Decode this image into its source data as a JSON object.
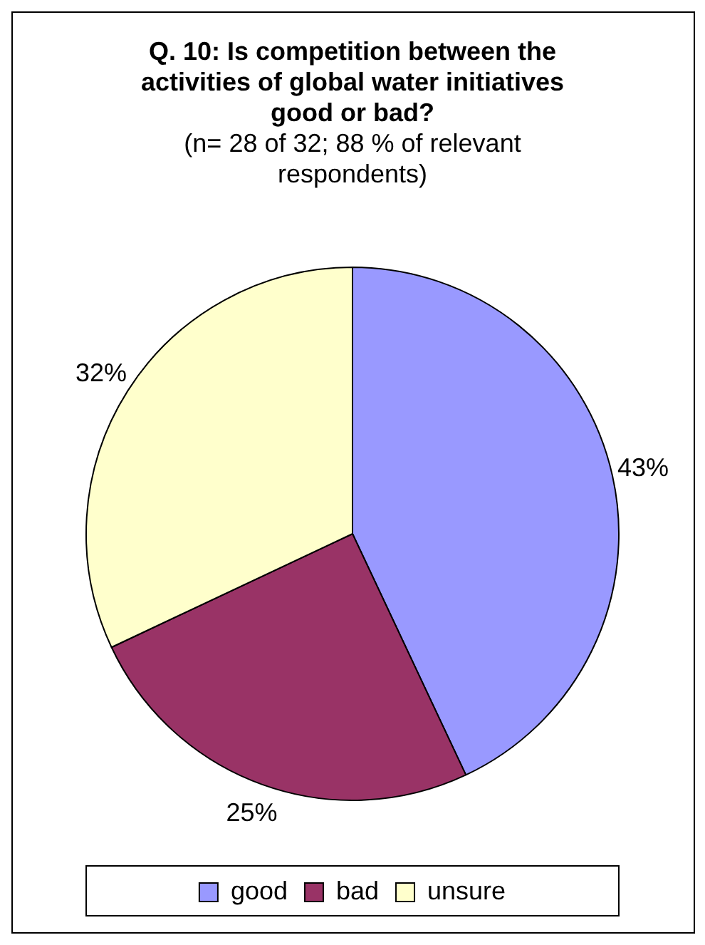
{
  "chart_data": {
    "type": "pie",
    "title": "Q. 10: Is competition between the activities of global water initiatives good or bad?",
    "subtitle": "(n= 28 of 32; 88 % of relevant respondents)",
    "categories": [
      "good",
      "bad",
      "unsure"
    ],
    "values": [
      43,
      25,
      32
    ],
    "colors": [
      "#9999ff",
      "#993366",
      "#ffffcc"
    ],
    "value_labels": [
      "43%",
      "25%",
      "32%"
    ],
    "legend": "bottom"
  }
}
